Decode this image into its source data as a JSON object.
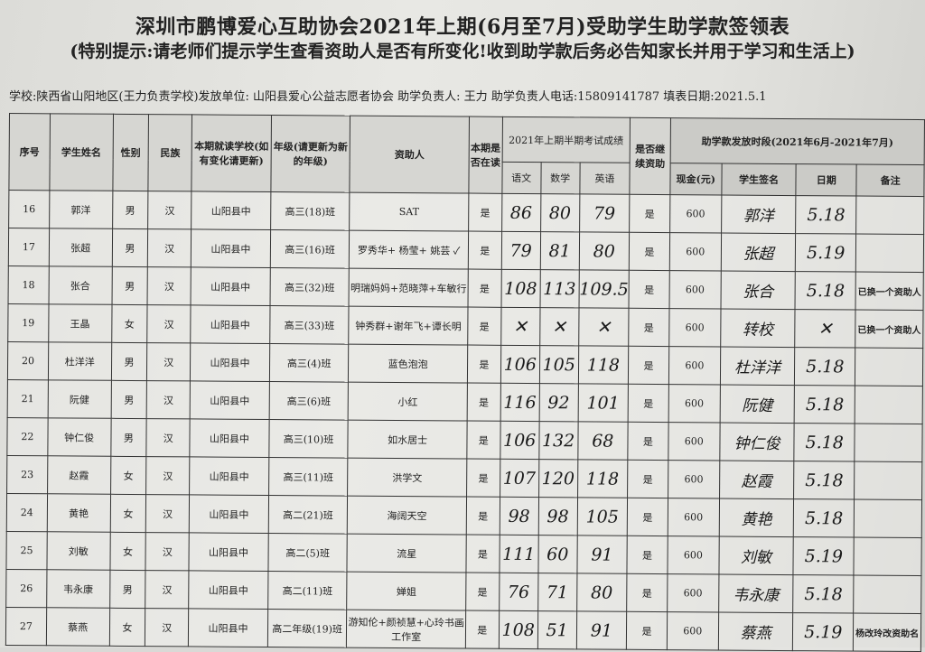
{
  "title": "深圳市鹏博爱心互助协会2021年上期(6月至7月)受助学生助学款签领表",
  "notice": "(特别提示:请老师们提示学生查看资助人是否有所变化!收到助学款后务必告知家长并用于学习和生活上)",
  "info": "学校:陕西省山阳地区(王力负责学校)发放单位: 山阳县爱心公益志愿者协会 助学负责人: 王力 助学负责人电话:15809141787 填表日期:2021.5.1",
  "headers": {
    "no": "序号",
    "name": "学生姓名",
    "gender": "性别",
    "ethnicity": "民族",
    "school": "本期就读学校(如有变化请更新)",
    "grade": "年级(请更新为新的年级)",
    "sponsor": "资助人",
    "enrolled": "本期是否在读",
    "scores": "2021年上期半期考试成绩",
    "chinese": "语文",
    "math": "数学",
    "english": "英语",
    "continue": "是否继续资助",
    "period": "助学款发放时段(2021年6月-2021年7月)",
    "cash": "现金(元)",
    "signature": "学生签名",
    "date": "日期",
    "remark": "备注"
  },
  "rows": [
    {
      "no": "16",
      "name": "郭洋",
      "gender": "男",
      "eth": "汉",
      "school": "山阳县中",
      "grade": "高三(18)班",
      "sponsor": "SAT",
      "enrolled": "是",
      "chinese": "86",
      "math": "80",
      "english": "79",
      "cont": "是",
      "cash": "600",
      "sig": "郭洋",
      "date": "5.18",
      "remark": ""
    },
    {
      "no": "17",
      "name": "张超",
      "gender": "男",
      "eth": "汉",
      "school": "山阳县中",
      "grade": "高三(16)班",
      "sponsor": "罗秀华+ 杨莹+ 姚芸 ✓",
      "enrolled": "是",
      "chinese": "79",
      "math": "81",
      "english": "80",
      "cont": "是",
      "cash": "600",
      "sig": "张超",
      "date": "5.19",
      "remark": ""
    },
    {
      "no": "18",
      "name": "张合",
      "gender": "男",
      "eth": "汉",
      "school": "山阳县中",
      "grade": "高三(32)班",
      "sponsor": "明瑞妈妈+范晓萍+车敏行",
      "enrolled": "是",
      "chinese": "108",
      "math": "113",
      "english": "109.5",
      "cont": "是",
      "cash": "600",
      "sig": "张合",
      "date": "5.18",
      "remark": "已换一个资助人"
    },
    {
      "no": "19",
      "name": "王晶",
      "gender": "女",
      "eth": "汉",
      "school": "山阳县中",
      "grade": "高三(33)班",
      "sponsor": "钟秀群+谢年飞+谭长明",
      "enrolled": "是",
      "chinese": "✕",
      "math": "✕",
      "english": "✕",
      "cont": "是",
      "cash": "600",
      "sig": "转校",
      "date": "✕",
      "remark": "已换一个资助人"
    },
    {
      "no": "20",
      "name": "杜洋洋",
      "gender": "男",
      "eth": "汉",
      "school": "山阳县中",
      "grade": "高三(4)班",
      "sponsor": "蓝色泡泡",
      "enrolled": "是",
      "chinese": "106",
      "math": "105",
      "english": "118",
      "cont": "是",
      "cash": "600",
      "sig": "杜洋洋",
      "date": "5.18",
      "remark": ""
    },
    {
      "no": "21",
      "name": "阮健",
      "gender": "男",
      "eth": "汉",
      "school": "山阳县中",
      "grade": "高三(6)班",
      "sponsor": "小红",
      "enrolled": "是",
      "chinese": "116",
      "math": "92",
      "english": "101",
      "cont": "是",
      "cash": "600",
      "sig": "阮健",
      "date": "5.18",
      "remark": ""
    },
    {
      "no": "22",
      "name": "钟仁俊",
      "gender": "男",
      "eth": "汉",
      "school": "山阳县中",
      "grade": "高三(10)班",
      "sponsor": "如水居士",
      "enrolled": "是",
      "chinese": "106",
      "math": "132",
      "english": "68",
      "cont": "是",
      "cash": "600",
      "sig": "钟仁俊",
      "date": "5.18",
      "remark": ""
    },
    {
      "no": "23",
      "name": "赵霞",
      "gender": "女",
      "eth": "汉",
      "school": "山阳县中",
      "grade": "高三(11)班",
      "sponsor": "洪学文",
      "enrolled": "是",
      "chinese": "107",
      "math": "120",
      "english": "118",
      "cont": "是",
      "cash": "600",
      "sig": "赵霞",
      "date": "5.18",
      "remark": ""
    },
    {
      "no": "24",
      "name": "黄艳",
      "gender": "女",
      "eth": "汉",
      "school": "山阳县中",
      "grade": "高二(21)班",
      "sponsor": "海阔天空",
      "enrolled": "是",
      "chinese": "98",
      "math": "98",
      "english": "105",
      "cont": "是",
      "cash": "600",
      "sig": "黄艳",
      "date": "5.18",
      "remark": ""
    },
    {
      "no": "25",
      "name": "刘敏",
      "gender": "女",
      "eth": "汉",
      "school": "山阳县中",
      "grade": "高二(5)班",
      "sponsor": "流星",
      "enrolled": "是",
      "chinese": "111",
      "math": "60",
      "english": "91",
      "cont": "是",
      "cash": "600",
      "sig": "刘敏",
      "date": "5.19",
      "remark": ""
    },
    {
      "no": "26",
      "name": "韦永康",
      "gender": "男",
      "eth": "汉",
      "school": "山阳县中",
      "grade": "高二(11)班",
      "sponsor": "婵姐",
      "enrolled": "是",
      "chinese": "76",
      "math": "71",
      "english": "80",
      "cont": "是",
      "cash": "600",
      "sig": "韦永康",
      "date": "5.18",
      "remark": ""
    },
    {
      "no": "27",
      "name": "蔡燕",
      "gender": "女",
      "eth": "汉",
      "school": "山阳县中",
      "grade": "高二年级(19)班",
      "sponsor": "游知伦+颜祯慧+心玲书画工作室",
      "enrolled": "是",
      "chinese": "108",
      "math": "51",
      "english": "91",
      "cont": "是",
      "cash": "600",
      "sig": "蔡燕",
      "date": "5.19",
      "remark": "杨改玲改资助名"
    }
  ]
}
